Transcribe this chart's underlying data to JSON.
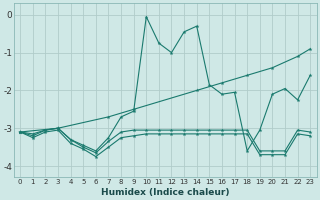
{
  "xlabel": "Humidex (Indice chaleur)",
  "background_color": "#cfe8e6",
  "grid_color": "#b8d8d6",
  "line_color": "#1a7a6e",
  "xlim": [
    -0.5,
    23.5
  ],
  "ylim": [
    -4.3,
    0.3
  ],
  "xticks": [
    0,
    1,
    2,
    3,
    4,
    5,
    6,
    7,
    8,
    9,
    10,
    11,
    12,
    13,
    14,
    15,
    16,
    17,
    18,
    19,
    20,
    21,
    22,
    23
  ],
  "yticks": [
    0,
    -1,
    -2,
    -3,
    -4
  ],
  "series": [
    {
      "x": [
        0,
        1,
        2,
        3,
        4,
        5,
        6,
        7,
        8,
        9,
        10,
        11,
        12,
        13,
        14,
        15,
        16,
        17,
        18,
        19,
        20,
        21,
        22,
        23
      ],
      "y": [
        -3.1,
        -3.2,
        -3.05,
        -3.0,
        -3.3,
        -3.45,
        -3.6,
        -3.25,
        -2.7,
        -2.55,
        -0.05,
        -0.75,
        -1.0,
        -0.45,
        -0.3,
        -1.85,
        -2.1,
        -2.05,
        -3.6,
        -3.05,
        -2.1,
        -1.95,
        -2.25,
        -1.6
      ]
    },
    {
      "x": [
        0,
        3,
        7,
        9,
        14,
        16,
        18,
        20,
        22,
        23
      ],
      "y": [
        -3.1,
        -3.0,
        -2.7,
        -2.5,
        -2.0,
        -1.8,
        -1.6,
        -1.4,
        -1.1,
        -0.9
      ]
    },
    {
      "x": [
        0,
        1,
        2,
        3,
        4,
        5,
        6,
        7,
        8,
        9,
        10,
        11,
        12,
        13,
        14,
        15,
        16,
        17,
        18,
        19,
        20,
        21,
        22,
        23
      ],
      "y": [
        -3.1,
        -3.15,
        -3.05,
        -3.0,
        -3.3,
        -3.5,
        -3.65,
        -3.35,
        -3.1,
        -3.05,
        -3.05,
        -3.05,
        -3.05,
        -3.05,
        -3.05,
        -3.05,
        -3.05,
        -3.05,
        -3.05,
        -3.6,
        -3.6,
        -3.6,
        -3.05,
        -3.1
      ]
    },
    {
      "x": [
        0,
        1,
        2,
        3,
        4,
        5,
        6,
        7,
        8,
        9,
        10,
        11,
        12,
        13,
        14,
        15,
        16,
        17,
        18,
        19,
        20,
        21,
        22,
        23
      ],
      "y": [
        -3.1,
        -3.25,
        -3.1,
        -3.05,
        -3.4,
        -3.55,
        -3.75,
        -3.5,
        -3.25,
        -3.2,
        -3.15,
        -3.15,
        -3.15,
        -3.15,
        -3.15,
        -3.15,
        -3.15,
        -3.15,
        -3.15,
        -3.7,
        -3.7,
        -3.7,
        -3.15,
        -3.2
      ]
    }
  ]
}
